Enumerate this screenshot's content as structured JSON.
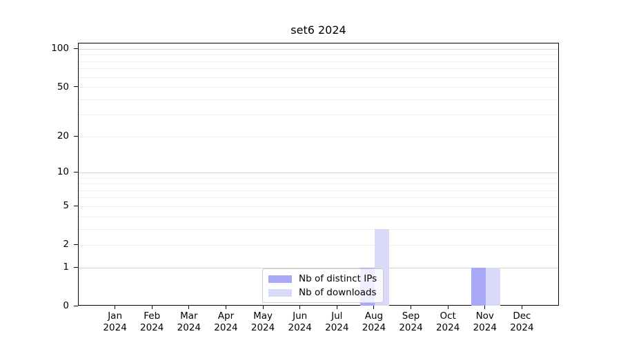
{
  "chart_data": {
    "type": "bar",
    "title": "set6 2024",
    "categories": [
      "Jan",
      "Feb",
      "Mar",
      "Apr",
      "May",
      "Jun",
      "Jul",
      "Aug",
      "Sep",
      "Oct",
      "Nov",
      "Dec"
    ],
    "x_year": "2024",
    "series": [
      {
        "name": "Nb of distinct IPs",
        "color": "#a9a9f7",
        "values": [
          0,
          0,
          0,
          0,
          0,
          0,
          0,
          1,
          0,
          0,
          1,
          0
        ]
      },
      {
        "name": "Nb of downloads",
        "color": "#d9d9f8",
        "values": [
          0,
          0,
          0,
          0,
          0,
          0,
          0,
          3,
          0,
          0,
          1,
          0
        ]
      }
    ],
    "yscale": "log1p",
    "ylim": [
      0,
      111
    ],
    "yticks": [
      0,
      1,
      2,
      5,
      10,
      20,
      50,
      100
    ],
    "grid_values": [
      1,
      2,
      3,
      4,
      5,
      6,
      7,
      8,
      9,
      10,
      20,
      30,
      40,
      50,
      60,
      70,
      80,
      90,
      100
    ],
    "grid_major_values": [
      1,
      10,
      100
    ],
    "grid_on": true,
    "legend_position": "lower center",
    "colors": {
      "grid_minor": "#ededed",
      "grid_major": "#d6d6d6",
      "axis": "#000000",
      "legend_border": "#cccccc"
    }
  }
}
